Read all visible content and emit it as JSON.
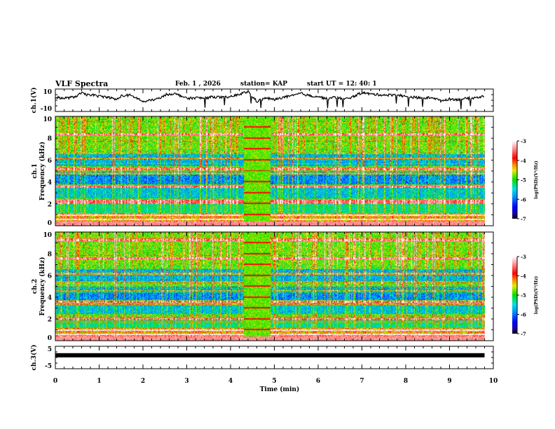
{
  "header": {
    "title": "VLF Spectra",
    "date": "Feb. 1  , 2026",
    "station": "station= KAP",
    "start_ut": "start  UT  =    12: 40: 1"
  },
  "chart_data": [
    {
      "type": "line",
      "name": "ch1-voltage",
      "ylabel": "ch.1(V)",
      "ylim": [
        -10,
        10
      ],
      "ytick_labels": [
        "10",
        "-10"
      ],
      "x_unit": "min",
      "xlim": [
        0,
        10
      ],
      "x": [
        0,
        0.2,
        0.4,
        0.5,
        0.6,
        0.7,
        0.8,
        1.0,
        1.2,
        1.4,
        1.5,
        1.7,
        1.9,
        2.0,
        2.2,
        2.4,
        2.5,
        2.7,
        2.9,
        3.0,
        3.2,
        3.4,
        3.6,
        3.8,
        4.0,
        4.2,
        4.4,
        4.5,
        4.6,
        4.8,
        5.0,
        5.2,
        5.4,
        5.6,
        5.8,
        6.0,
        6.2,
        6.4,
        6.6,
        6.8,
        7.0,
        7.2,
        7.4,
        7.6,
        7.8,
        8.0,
        8.2,
        8.4,
        8.6,
        8.8,
        9.0,
        9.2,
        9.4,
        9.6,
        9.8
      ],
      "y": [
        2.5,
        1.8,
        2.6,
        4.2,
        6.5,
        4.8,
        5.0,
        3.5,
        2.8,
        0.5,
        3.8,
        4.5,
        1.2,
        -1.5,
        0.2,
        1.8,
        4.8,
        6.0,
        3.6,
        1.5,
        2.2,
        1.8,
        3.1,
        2.5,
        3.0,
        5.3,
        7.8,
        3.2,
        -1.0,
        2.0,
        0.5,
        2.6,
        3.8,
        6.2,
        4.0,
        3.4,
        1.2,
        2.8,
        0.8,
        3.2,
        6.8,
        5.5,
        4.9,
        4.6,
        5.0,
        3.2,
        2.6,
        1.6,
        2.7,
        -0.5,
        1.1,
        0.6,
        1.6,
        2.3,
        3.8
      ]
    },
    {
      "type": "heatmap",
      "name": "ch1-spectrogram",
      "ylabel": "ch.1 Frequency (kHz)",
      "ylim": [
        0,
        10
      ],
      "ytick_labels": [
        "0",
        "2",
        "4",
        "6",
        "8",
        "10"
      ],
      "xlim": [
        0,
        10
      ],
      "data_end_min": 9.8,
      "colorbar": {
        "label": "log(PSD)(V²/Hz)",
        "range": [
          -7,
          -3
        ],
        "tick_labels": [
          "-3",
          "-4",
          "-5",
          "-6",
          "-7"
        ]
      },
      "strong_lines_khz": [
        0.3,
        0.6,
        1.0,
        2.1,
        2.3,
        3.6,
        4.8,
        5.2,
        6.2,
        8.4
      ],
      "burst_window_min": [
        4.3,
        4.9
      ]
    },
    {
      "type": "heatmap",
      "name": "ch2-spectrogram",
      "ylabel": "ch.2 Frequency (kHz)",
      "ylim": [
        0,
        10
      ],
      "ytick_labels": [
        "0",
        "2",
        "4",
        "6",
        "8",
        "10"
      ],
      "xlim": [
        0,
        10
      ],
      "data_end_min": 9.8,
      "colorbar": {
        "label": "log(PSD)(V²/Hz)",
        "range": [
          -7,
          -3
        ],
        "tick_labels": [
          "-3",
          "-4",
          "-5",
          "-6",
          "-7"
        ]
      },
      "strong_lines_khz": [
        0.3,
        0.6,
        1.0,
        2.0,
        3.4,
        3.6,
        4.6,
        6.2,
        7.6,
        9.3
      ],
      "burst_window_min": [
        4.3,
        4.9
      ]
    },
    {
      "type": "line",
      "name": "ch3-voltage",
      "ylabel": "ch.3(V)",
      "ylim": [
        -5,
        5
      ],
      "ytick_labels": [
        "5",
        "-5"
      ],
      "xlim": [
        0,
        10
      ],
      "x": [
        0,
        9.8
      ],
      "y": [
        1.0,
        1.0
      ]
    }
  ],
  "xaxis": {
    "label": "Time  (min)",
    "tick_labels": [
      "0",
      "1",
      "2",
      "3",
      "4",
      "5",
      "6",
      "7",
      "8",
      "9",
      "10"
    ]
  }
}
